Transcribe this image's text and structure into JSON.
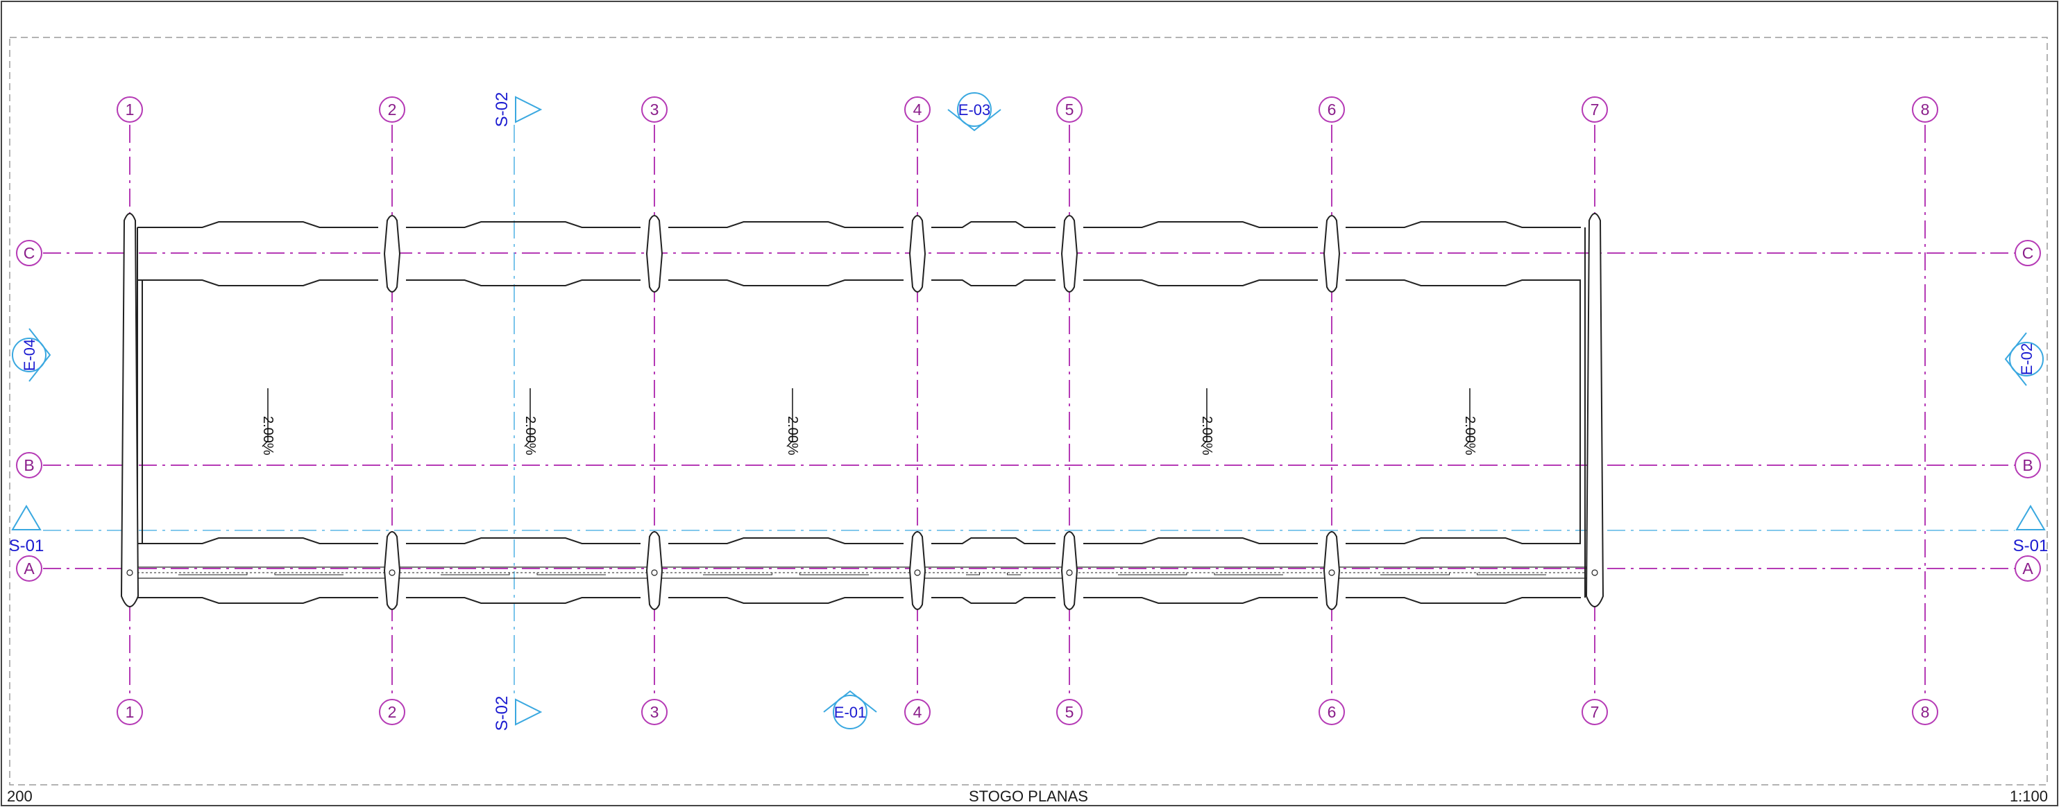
{
  "title_block": {
    "sheet_number": "200",
    "title": "STOGO PLANAS",
    "scale": "1:100"
  },
  "colors": {
    "grid_line": "#b53ab5",
    "grid_text": "#8a1d8a",
    "section_marker": "#3aa8e0",
    "marker_text": "#1a1ad0",
    "outline": "#222222",
    "frame": "#999999"
  },
  "grid": {
    "vertical": [
      "1",
      "2",
      "3",
      "4",
      "5",
      "6",
      "7",
      "8"
    ],
    "horizontal": [
      "C",
      "B",
      "A"
    ]
  },
  "markers": {
    "section_vertical": "S-02",
    "section_horizontal": "S-01",
    "elevation_north": "E-03",
    "elevation_south": "E-01",
    "elevation_west": "E-04",
    "elevation_east": "E-02"
  },
  "roof": {
    "slopes": [
      "2.00%",
      "2.00%",
      "2.00%",
      "2.00%",
      "2.00%"
    ]
  }
}
